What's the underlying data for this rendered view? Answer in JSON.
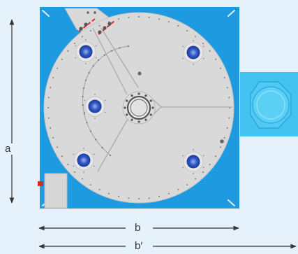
{
  "dimensions": {
    "height_label": "a",
    "width_label": "b",
    "overall_width_label": "b′"
  },
  "colors": {
    "background": "#e6f2fb",
    "frame_blue": "#1e9be0",
    "plate_grey": "#d9d9d9",
    "motor_blue": "#43c3f0",
    "accent_red": "#e0261d",
    "line_dark": "#333333"
  }
}
